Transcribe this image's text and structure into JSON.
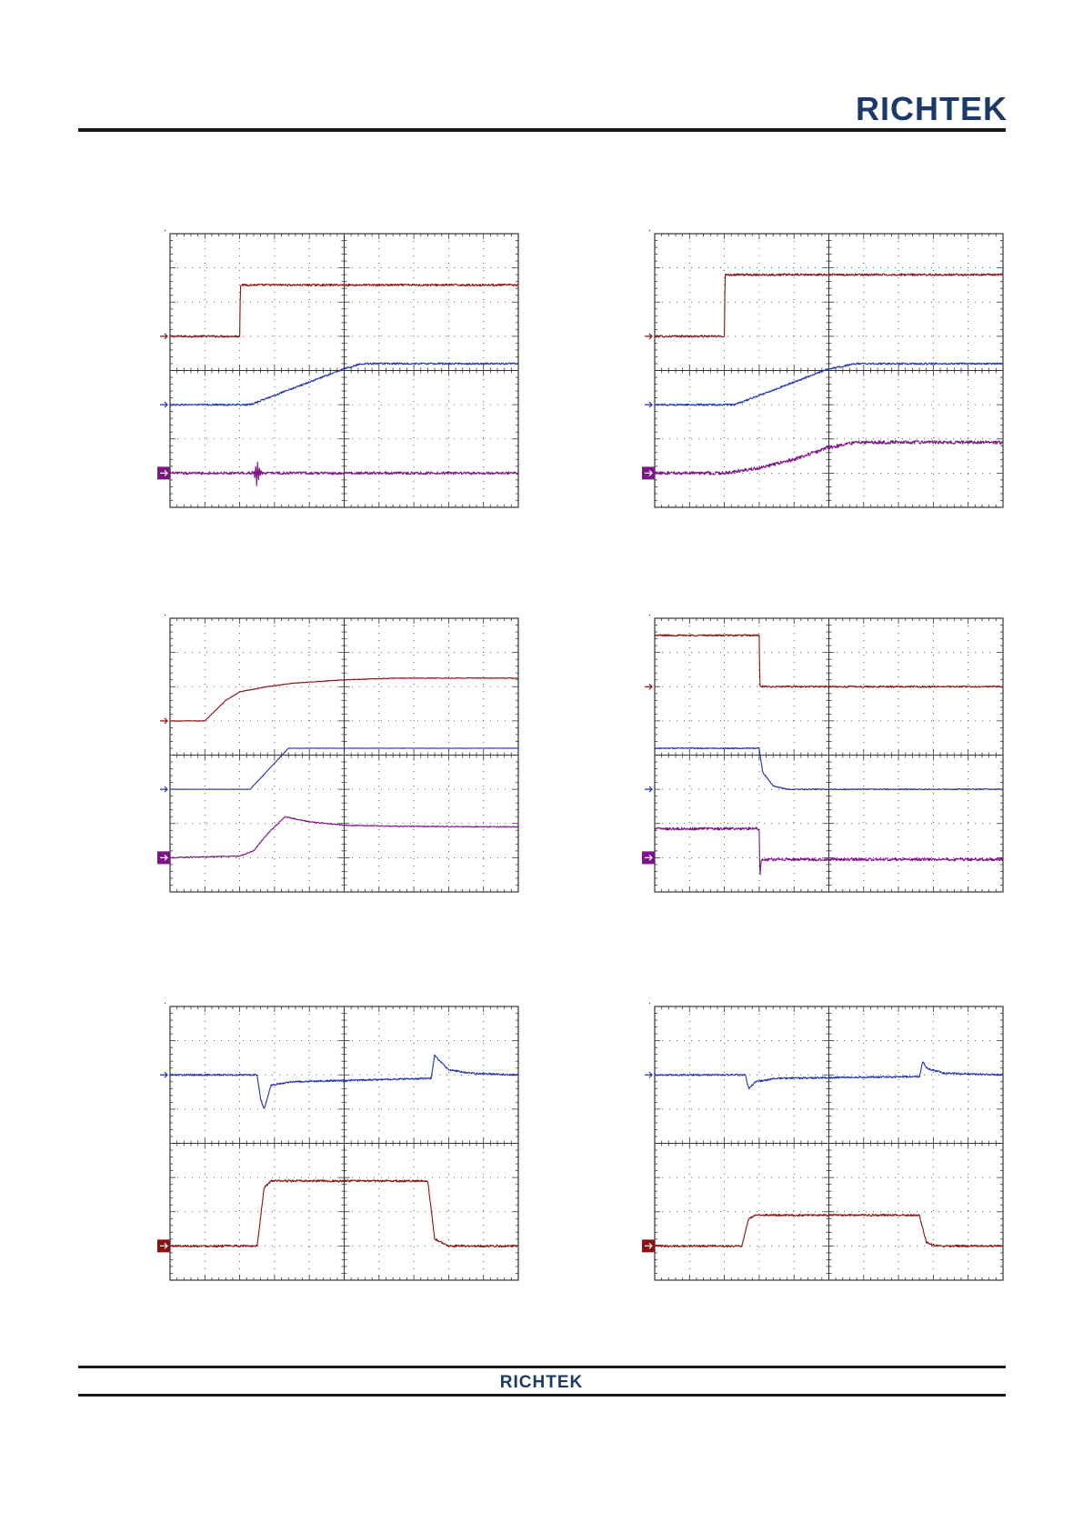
{
  "header": {
    "logo_text": "RICHTEK"
  },
  "footer": {
    "logo_text": "RICHTEK"
  },
  "colors": {
    "ch1": "#8b1010",
    "ch2": "#1f2fb5",
    "ch3": "#7d1487",
    "grid": "#333333",
    "logo": "#1b3a6b"
  },
  "chart_data": [
    {
      "type": "line",
      "grid": {
        "divisions_x": 10,
        "divisions_y": 8
      },
      "xlim": [
        0,
        10
      ],
      "ylim": [
        0,
        8
      ],
      "series": [
        {
          "color": "#8b1010",
          "marker_y": 5.0,
          "marker_style": "arrow",
          "points": [
            [
              0,
              5.0
            ],
            [
              2.0,
              5.0
            ],
            [
              2.02,
              6.5
            ],
            [
              10,
              6.5
            ]
          ],
          "noise": 0.03
        },
        {
          "color": "#1f2fb5",
          "marker_y": 3.0,
          "marker_style": "arrow",
          "points": [
            [
              0,
              3.0
            ],
            [
              2.3,
              3.0
            ],
            [
              5.0,
              4.05
            ],
            [
              5.5,
              4.2
            ],
            [
              10,
              4.2
            ]
          ],
          "noise": 0.025
        },
        {
          "color": "#7d1487",
          "marker_y": 1.0,
          "marker_style": "box",
          "points": [
            [
              0,
              1.0
            ],
            [
              10,
              1.0
            ]
          ],
          "noise": 0.04,
          "bursts": [
            {
              "x": 2.5,
              "amp": 0.45
            }
          ]
        }
      ]
    },
    {
      "type": "line",
      "grid": {
        "divisions_x": 10,
        "divisions_y": 8
      },
      "xlim": [
        0,
        10
      ],
      "ylim": [
        0,
        8
      ],
      "series": [
        {
          "color": "#8b1010",
          "marker_y": 5.0,
          "marker_style": "arrow",
          "points": [
            [
              0,
              5.0
            ],
            [
              2.0,
              5.0
            ],
            [
              2.02,
              6.8
            ],
            [
              10,
              6.8
            ]
          ],
          "noise": 0.03
        },
        {
          "color": "#1f2fb5",
          "marker_y": 3.0,
          "marker_style": "arrow",
          "points": [
            [
              0,
              3.0
            ],
            [
              2.3,
              3.0
            ],
            [
              5.0,
              4.05
            ],
            [
              5.8,
              4.2
            ],
            [
              10,
              4.2
            ]
          ],
          "noise": 0.025
        },
        {
          "color": "#7d1487",
          "marker_y": 1.0,
          "marker_style": "box",
          "points": [
            [
              0,
              1.0
            ],
            [
              2.0,
              1.0
            ],
            [
              3.0,
              1.15
            ],
            [
              4.0,
              1.4
            ],
            [
              5.0,
              1.75
            ],
            [
              5.8,
              1.9
            ],
            [
              10,
              1.9
            ]
          ],
          "noise": 0.05
        }
      ]
    },
    {
      "type": "line",
      "grid": {
        "divisions_x": 10,
        "divisions_y": 8
      },
      "xlim": [
        0,
        10
      ],
      "ylim": [
        0,
        8
      ],
      "series": [
        {
          "color": "#8b1010",
          "marker_y": 5.0,
          "marker_style": "arrow",
          "points": [
            [
              0,
              5.0
            ],
            [
              1.0,
              5.0
            ],
            [
              1.6,
              5.6
            ],
            [
              2.0,
              5.85
            ],
            [
              2.8,
              6.0
            ],
            [
              3.5,
              6.1
            ],
            [
              5.0,
              6.2
            ],
            [
              6.5,
              6.25
            ],
            [
              10,
              6.25
            ]
          ],
          "noise": 0.01
        },
        {
          "color": "#1f2fb5",
          "marker_y": 3.0,
          "marker_style": "arrow",
          "points": [
            [
              0,
              3.0
            ],
            [
              2.3,
              3.0
            ],
            [
              3.4,
              4.2
            ],
            [
              10,
              4.2
            ]
          ],
          "noise": 0.005
        },
        {
          "color": "#7d1487",
          "marker_y": 1.0,
          "marker_style": "box",
          "points": [
            [
              0,
              1.0
            ],
            [
              2.0,
              1.05
            ],
            [
              2.4,
              1.2
            ],
            [
              2.8,
              1.7
            ],
            [
              3.3,
              2.2
            ],
            [
              4.0,
              2.05
            ],
            [
              5.0,
              1.95
            ],
            [
              6.5,
              1.92
            ],
            [
              10,
              1.9
            ]
          ],
          "noise": 0.015
        }
      ]
    },
    {
      "type": "line",
      "grid": {
        "divisions_x": 10,
        "divisions_y": 8
      },
      "xlim": [
        0,
        10
      ],
      "ylim": [
        0,
        8
      ],
      "series": [
        {
          "color": "#8b1010",
          "marker_y": 6.0,
          "marker_style": "arrow",
          "points": [
            [
              0,
              7.5
            ],
            [
              3.0,
              7.5
            ],
            [
              3.02,
              6.0
            ],
            [
              10,
              6.0
            ]
          ],
          "noise": 0.025
        },
        {
          "color": "#1f2fb5",
          "marker_y": 3.0,
          "marker_style": "arrow",
          "points": [
            [
              0,
              4.2
            ],
            [
              3.0,
              4.2
            ],
            [
              3.1,
              3.5
            ],
            [
              3.4,
              3.1
            ],
            [
              3.8,
              3.0
            ],
            [
              10,
              3.0
            ]
          ],
          "noise": 0.015
        },
        {
          "color": "#7d1487",
          "marker_y": 1.0,
          "marker_style": "box",
          "points": [
            [
              0,
              1.85
            ],
            [
              3.0,
              1.85
            ],
            [
              3.02,
              0.4
            ],
            [
              3.06,
              0.95
            ],
            [
              10,
              0.95
            ]
          ],
          "noise": 0.04
        }
      ]
    },
    {
      "type": "line",
      "grid": {
        "divisions_x": 10,
        "divisions_y": 8
      },
      "xlim": [
        0,
        10
      ],
      "ylim": [
        0,
        8
      ],
      "series": [
        {
          "color": "#1f2fb5",
          "marker_y": 6.0,
          "marker_style": "arrow",
          "points": [
            [
              0,
              6.0
            ],
            [
              2.5,
              6.0
            ],
            [
              2.6,
              5.3
            ],
            [
              2.7,
              5.0
            ],
            [
              2.9,
              5.7
            ],
            [
              3.5,
              5.8
            ],
            [
              7.5,
              5.9
            ],
            [
              7.6,
              6.6
            ],
            [
              7.7,
              6.45
            ],
            [
              8.0,
              6.15
            ],
            [
              8.6,
              6.05
            ],
            [
              10,
              6.0
            ]
          ],
          "noise": 0.025
        },
        {
          "color": "#8b1010",
          "marker_y": 1.0,
          "marker_style": "box",
          "points": [
            [
              0,
              1.0
            ],
            [
              2.5,
              1.0
            ],
            [
              2.7,
              2.7
            ],
            [
              2.9,
              2.9
            ],
            [
              7.4,
              2.9
            ],
            [
              7.6,
              1.2
            ],
            [
              8.0,
              1.0
            ],
            [
              10,
              1.0
            ]
          ],
          "noise": 0.03
        }
      ]
    },
    {
      "type": "line",
      "grid": {
        "divisions_x": 10,
        "divisions_y": 8
      },
      "xlim": [
        0,
        10
      ],
      "ylim": [
        0,
        8
      ],
      "series": [
        {
          "color": "#1f2fb5",
          "marker_y": 6.0,
          "marker_style": "arrow",
          "points": [
            [
              0,
              6.0
            ],
            [
              2.6,
              6.0
            ],
            [
              2.7,
              5.6
            ],
            [
              2.9,
              5.8
            ],
            [
              3.5,
              5.9
            ],
            [
              7.6,
              5.95
            ],
            [
              7.7,
              6.4
            ],
            [
              7.8,
              6.2
            ],
            [
              8.3,
              6.05
            ],
            [
              10,
              6.0
            ]
          ],
          "noise": 0.025
        },
        {
          "color": "#8b1010",
          "marker_y": 1.0,
          "marker_style": "box",
          "points": [
            [
              0,
              1.0
            ],
            [
              2.5,
              1.0
            ],
            [
              2.7,
              1.8
            ],
            [
              2.9,
              1.9
            ],
            [
              7.6,
              1.9
            ],
            [
              7.8,
              1.1
            ],
            [
              8.1,
              1.0
            ],
            [
              10,
              1.0
            ]
          ],
          "noise": 0.03
        }
      ]
    }
  ]
}
